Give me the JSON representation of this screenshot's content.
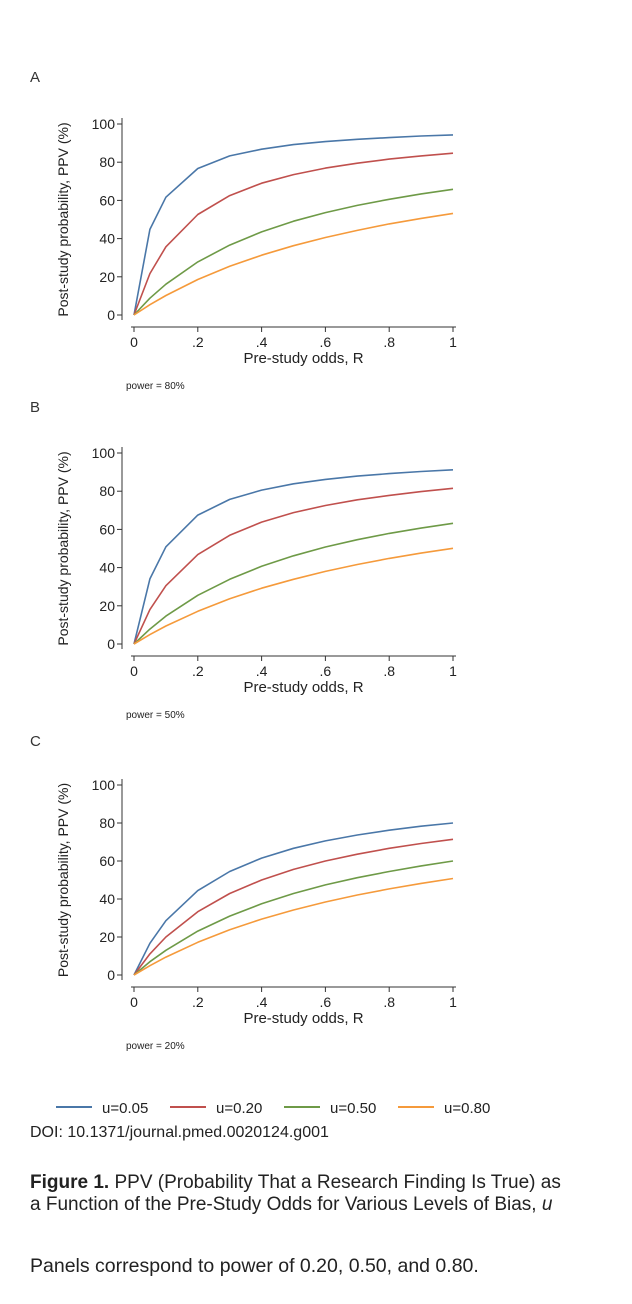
{
  "chart_data": [
    {
      "type": "line",
      "panel_label": "A",
      "ylabel": "Post-study probability, PPV (%)",
      "xlabel": "Pre-study odds, R",
      "power_note": "power = 80%",
      "xlim": [
        0,
        1
      ],
      "ylim": [
        0,
        100
      ],
      "xticks": [
        "0",
        ".2",
        ".4",
        ".6",
        ".8",
        "1"
      ],
      "yticks": [
        "0",
        "20",
        "40",
        "60",
        "80",
        "100"
      ],
      "series": [
        {
          "name": "u=0.05",
          "x": [
            0,
            0.05,
            0.1,
            0.2,
            0.3,
            0.4,
            0.5,
            0.6,
            0.7,
            0.8,
            0.9,
            1.0
          ],
          "values": [
            0,
            44.8,
            61.7,
            76.7,
            83.3,
            86.8,
            89.2,
            90.8,
            92.0,
            92.9,
            93.7,
            94.3
          ]
        },
        {
          "name": "u=0.20",
          "x": [
            0,
            0.05,
            0.1,
            0.2,
            0.3,
            0.4,
            0.5,
            0.6,
            0.7,
            0.8,
            0.9,
            1.0
          ],
          "values": [
            0,
            21.7,
            35.7,
            52.6,
            62.5,
            69.0,
            73.5,
            76.9,
            79.5,
            81.6,
            83.3,
            84.7
          ]
        },
        {
          "name": "u=0.50",
          "x": [
            0,
            0.05,
            0.1,
            0.2,
            0.3,
            0.4,
            0.5,
            0.6,
            0.7,
            0.8,
            0.9,
            1.0
          ],
          "values": [
            0,
            8.8,
            16.1,
            27.8,
            36.6,
            43.5,
            49.1,
            53.6,
            57.4,
            60.6,
            63.4,
            65.8
          ]
        },
        {
          "name": "u=0.80",
          "x": [
            0,
            0.05,
            0.1,
            0.2,
            0.3,
            0.4,
            0.5,
            0.6,
            0.7,
            0.8,
            0.9,
            1.0
          ],
          "values": [
            0,
            5.4,
            10.2,
            18.6,
            25.5,
            31.3,
            36.3,
            40.6,
            44.3,
            47.7,
            50.6,
            53.2
          ]
        }
      ]
    },
    {
      "type": "line",
      "panel_label": "B",
      "ylabel": "Post-study probability, PPV (%)",
      "xlabel": "Pre-study odds, R",
      "power_note": "power = 50%",
      "xlim": [
        0,
        1
      ],
      "ylim": [
        0,
        100
      ],
      "xticks": [
        "0",
        ".2",
        ".4",
        ".6",
        ".8",
        "1"
      ],
      "yticks": [
        "0",
        "20",
        "40",
        "60",
        "80",
        "100"
      ],
      "series": [
        {
          "name": "u=0.05",
          "x": [
            0,
            0.05,
            0.1,
            0.2,
            0.3,
            0.4,
            0.5,
            0.6,
            0.7,
            0.8,
            0.9,
            1.0
          ],
          "values": [
            0,
            34.1,
            50.9,
            67.5,
            75.7,
            80.6,
            83.9,
            86.2,
            87.9,
            89.2,
            90.3,
            91.2
          ]
        },
        {
          "name": "u=0.20",
          "x": [
            0,
            0.05,
            0.1,
            0.2,
            0.3,
            0.4,
            0.5,
            0.6,
            0.7,
            0.8,
            0.9,
            1.0
          ],
          "values": [
            0,
            18.0,
            30.5,
            46.8,
            56.9,
            63.8,
            68.8,
            72.5,
            75.5,
            77.8,
            79.8,
            81.5
          ]
        },
        {
          "name": "u=0.50",
          "x": [
            0,
            0.05,
            0.1,
            0.2,
            0.3,
            0.4,
            0.5,
            0.6,
            0.7,
            0.8,
            0.9,
            1.0
          ],
          "values": [
            0,
            7.8,
            14.6,
            25.5,
            33.9,
            40.7,
            46.2,
            50.8,
            54.6,
            57.9,
            60.7,
            63.2
          ]
        },
        {
          "name": "u=0.80",
          "x": [
            0,
            0.05,
            0.1,
            0.2,
            0.3,
            0.4,
            0.5,
            0.6,
            0.7,
            0.8,
            0.9,
            1.0
          ],
          "values": [
            0,
            4.9,
            9.4,
            17.1,
            23.7,
            29.2,
            33.9,
            38.0,
            41.6,
            44.8,
            47.6,
            50.1
          ]
        }
      ]
    },
    {
      "type": "line",
      "panel_label": "C",
      "ylabel": "Post-study probability, PPV (%)",
      "xlabel": "Pre-study odds, R",
      "power_note": "power = 20%",
      "xlim": [
        0,
        1
      ],
      "ylim": [
        0,
        100
      ],
      "xticks": [
        "0",
        ".2",
        ".4",
        ".6",
        ".8",
        "1"
      ],
      "yticks": [
        "0",
        "20",
        "40",
        "60",
        "80",
        "100"
      ],
      "series": [
        {
          "name": "u=0.05",
          "x": [
            0,
            0.05,
            0.1,
            0.2,
            0.3,
            0.4,
            0.5,
            0.6,
            0.7,
            0.8,
            0.9,
            1.0
          ],
          "values": [
            0,
            16.7,
            28.6,
            44.4,
            54.5,
            61.5,
            66.7,
            70.6,
            73.7,
            76.2,
            78.3,
            80.0
          ]
        },
        {
          "name": "u=0.20",
          "x": [
            0,
            0.05,
            0.1,
            0.2,
            0.3,
            0.4,
            0.5,
            0.6,
            0.7,
            0.8,
            0.9,
            1.0
          ],
          "values": [
            0,
            11.1,
            20.0,
            33.3,
            42.9,
            50.0,
            55.6,
            60.0,
            63.6,
            66.7,
            69.2,
            71.4
          ]
        },
        {
          "name": "u=0.50",
          "x": [
            0,
            0.05,
            0.1,
            0.2,
            0.3,
            0.4,
            0.5,
            0.6,
            0.7,
            0.8,
            0.9,
            1.0
          ],
          "values": [
            0,
            7.0,
            13.0,
            23.1,
            31.0,
            37.5,
            42.9,
            47.4,
            51.2,
            54.5,
            57.4,
            60.0
          ]
        },
        {
          "name": "u=0.80",
          "x": [
            0,
            0.05,
            0.1,
            0.2,
            0.3,
            0.4,
            0.5,
            0.6,
            0.7,
            0.8,
            0.9,
            1.0
          ],
          "values": [
            0,
            4.9,
            9.4,
            17.2,
            23.8,
            29.4,
            34.2,
            38.4,
            42.1,
            45.3,
            48.2,
            50.8
          ]
        }
      ]
    }
  ],
  "colors": {
    "u=0.05": "#4a77a8",
    "u=0.20": "#c0504d",
    "u=0.50": "#6e9a47",
    "u=0.80": "#f59a3b"
  },
  "legend": [
    "u=0.05",
    "u=0.20",
    "u=0.50",
    "u=0.80"
  ],
  "doi": "DOI: 10.1371/journal.pmed.0020124.g001",
  "caption": {
    "figure_label": "Figure 1.",
    "title_text": "PPV (Probability That a Research Finding Is True) as a Function of the Pre-Study Odds for Various Levels of Bias,",
    "title_var": "u",
    "body": "Panels correspond to power of 0.20, 0.50, and 0.80."
  }
}
